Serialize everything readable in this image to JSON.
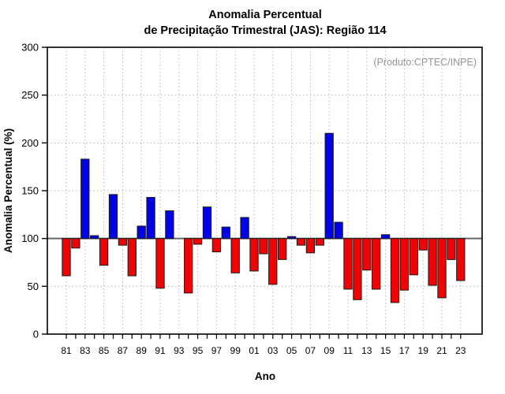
{
  "title": {
    "line1": "Anomalia Percentual",
    "line2": "de Precipitação Trimestral (JAS): Região 114"
  },
  "annotation": "(Produto:CPTEC/INPE)",
  "axes": {
    "ylabel": "Anomalia Percentual (%)",
    "xlabel": "Ano",
    "yticks": [
      0,
      50,
      100,
      150,
      200,
      250,
      300
    ],
    "ylim": [
      0,
      300
    ],
    "baseline_value": 100,
    "grid_values": [
      50,
      150,
      200,
      250
    ]
  },
  "colors": {
    "positive_bar": "#0202e6",
    "negative_bar": "#ee0404",
    "bar_outline": "#1a1a1a",
    "baseline": "#666666",
    "grid": "#b8b8b8",
    "frame": "#000000",
    "annotation_gray": "#949494"
  },
  "chart_data": {
    "type": "bar",
    "title": "Anomalia Percentual de Precipitação Trimestral (JAS): Região 114",
    "xlabel": "Ano",
    "ylabel": "Anomalia Percentual (%)",
    "ylim": [
      0,
      300
    ],
    "baseline": 100,
    "legend": "none",
    "grid": "dotted",
    "years": [
      1981,
      1982,
      1983,
      1984,
      1985,
      1986,
      1987,
      1988,
      1989,
      1990,
      1991,
      1992,
      1993,
      1994,
      1995,
      1996,
      1997,
      1998,
      1999,
      2000,
      2001,
      2002,
      2003,
      2004,
      2005,
      2006,
      2007,
      2008,
      2009,
      2010,
      2011,
      2012,
      2013,
      2014,
      2015,
      2016,
      2017,
      2018,
      2019,
      2020,
      2021,
      2022,
      2023
    ],
    "values": [
      61,
      90,
      183,
      103,
      72,
      146,
      93,
      61,
      113,
      143,
      48,
      129,
      100,
      43,
      94,
      133,
      86,
      112,
      64,
      122,
      66,
      84,
      52,
      78,
      102,
      93,
      85,
      93,
      210,
      117,
      47,
      36,
      67,
      47,
      104,
      33,
      46,
      62,
      88,
      51,
      38,
      78,
      56
    ],
    "xtick_labels": [
      "81",
      "83",
      "85",
      "87",
      "89",
      "91",
      "93",
      "95",
      "97",
      "99",
      "01",
      "03",
      "05",
      "07",
      "09",
      "11",
      "13",
      "15",
      "17",
      "19",
      "21",
      "23"
    ]
  }
}
